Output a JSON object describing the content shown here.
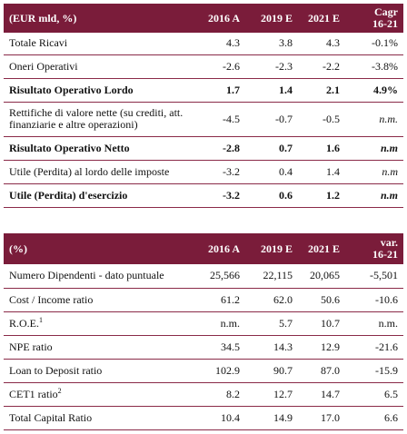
{
  "table1": {
    "header": [
      "(EUR mld, %)",
      "2016 A",
      "2019 E",
      "2021 E",
      "Cagr\n16-21"
    ],
    "rows": [
      {
        "label": "Totale Ricavi",
        "v": [
          "4.3",
          "3.8",
          "4.3",
          "-0.1%"
        ]
      },
      {
        "label": "Oneri Operativi",
        "v": [
          "-2.6",
          "-2.3",
          "-2.2",
          "-3.8%"
        ]
      },
      {
        "label": "Risultato Operativo Lordo",
        "v": [
          "1.7",
          "1.4",
          "2.1",
          "4.9%"
        ]
      },
      {
        "label": "Rettifiche di valore nette (su crediti, att. finanziarie e altre operazioni)",
        "v": [
          "-4.5",
          "-0.7",
          "-0.5",
          "n.m."
        ]
      },
      {
        "label": "Risultato Operativo Netto",
        "v": [
          "-2.8",
          "0.7",
          "1.6",
          "n.m"
        ]
      },
      {
        "label": "Utile (Perdita) al lordo delle imposte",
        "v": [
          "-3.2",
          "0.4",
          "1.4",
          "n.m"
        ]
      },
      {
        "label": "Utile (Perdita) d'esercizio",
        "v": [
          "-3.2",
          "0.6",
          "1.2",
          "n.m"
        ]
      }
    ]
  },
  "table2": {
    "header": [
      "(%)",
      "2016 A",
      "2019 E",
      "2021 E",
      "var.\n16-21"
    ],
    "rows": [
      {
        "label": "Numero Dipendenti - dato puntuale",
        "v": [
          "25,566",
          "22,115",
          "20,065",
          "-5,501"
        ]
      },
      {
        "label": "Cost / Income ratio",
        "v": [
          "61.2",
          "62.0",
          "50.6",
          "-10.6"
        ]
      },
      {
        "label": "R.O.E.",
        "sup": "1",
        "v": [
          "n.m.",
          "5.7",
          "10.7",
          "n.m."
        ]
      },
      {
        "label": "NPE ratio",
        "v": [
          "34.5",
          "14.3",
          "12.9",
          "-21.6"
        ]
      },
      {
        "label": "Loan to Deposit ratio",
        "v": [
          "102.9",
          "90.7",
          "87.0",
          "-15.9"
        ]
      },
      {
        "label": "CET1 ratio",
        "sup": "2",
        "v": [
          "8.2",
          "12.7",
          "14.7",
          "6.5"
        ]
      },
      {
        "label": "Total Capital Ratio",
        "v": [
          "10.4",
          "14.9",
          "17.0",
          "6.6"
        ]
      }
    ]
  }
}
